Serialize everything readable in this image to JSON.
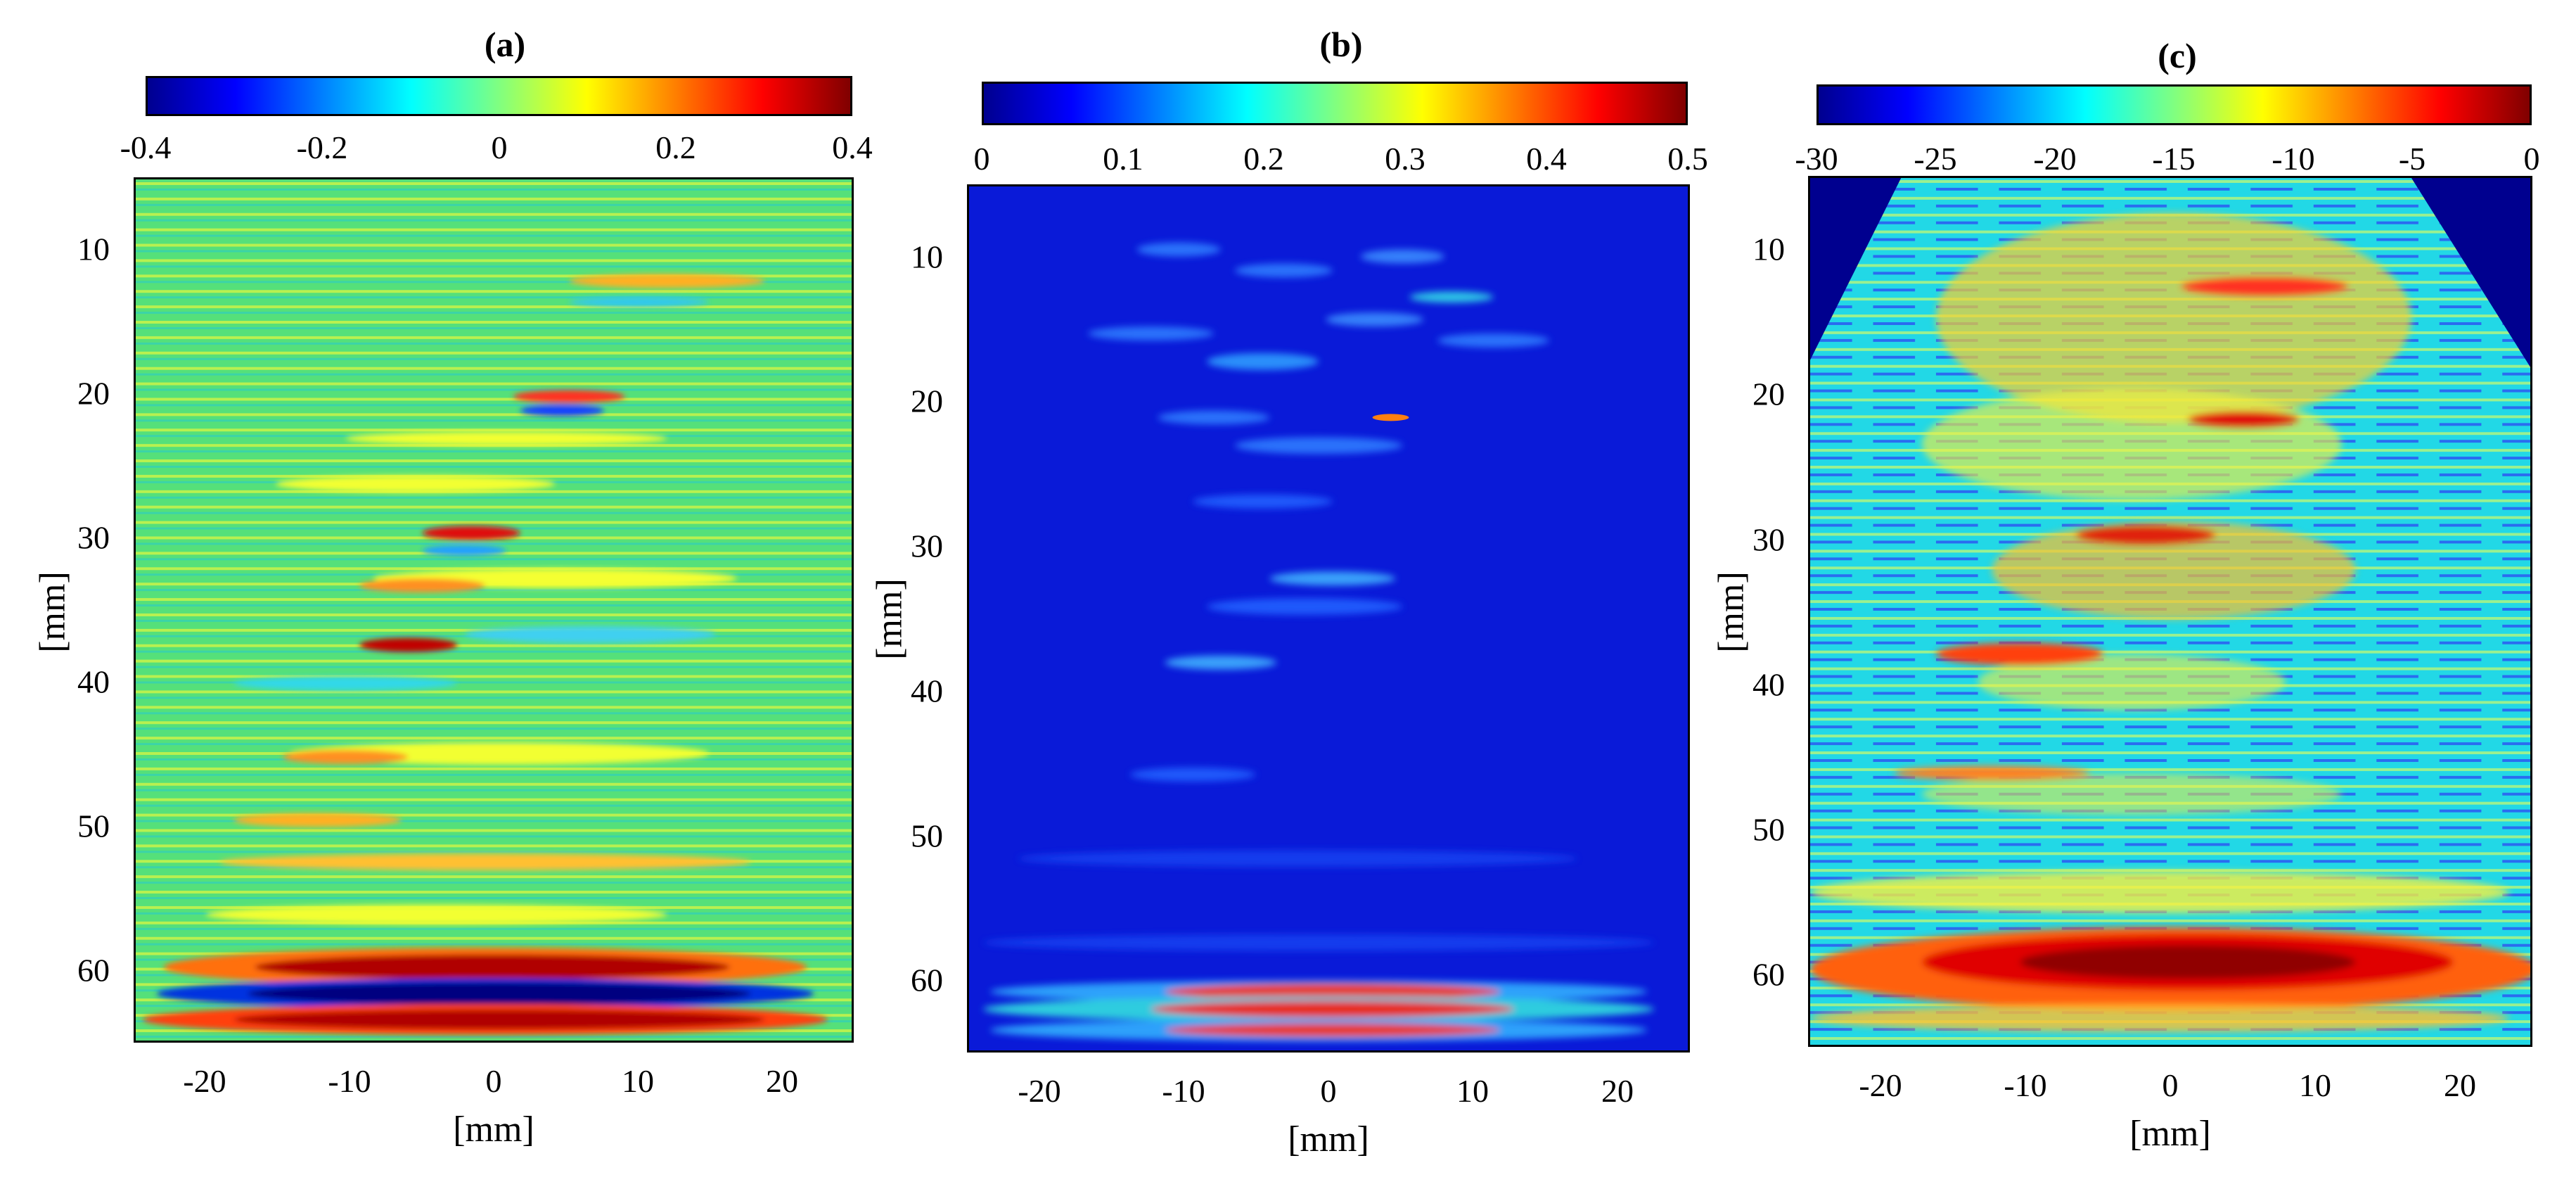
{
  "chart_data": [
    {
      "type": "heatmap",
      "title": "(a)",
      "xlabel": "[mm]",
      "ylabel": "[mm]",
      "xlim": [
        -25,
        25
      ],
      "ylim": [
        5,
        65
      ],
      "xticks": [
        "-20",
        "-10",
        "0",
        "10",
        "20"
      ],
      "yticks": [
        "10",
        "20",
        "30",
        "40",
        "50",
        "60"
      ],
      "colorbar": {
        "range": [
          -0.4,
          0.4
        ],
        "ticks": [
          "-0.4",
          "-0.2",
          "0",
          "0.2",
          "0.4"
        ],
        "colormap": "jet"
      },
      "background_value": 0.0
    },
    {
      "type": "heatmap",
      "title": "(b)",
      "xlabel": "[mm]",
      "ylabel": "[mm]",
      "xlim": [
        -25,
        25
      ],
      "ylim": [
        5,
        65
      ],
      "xticks": [
        "-20",
        "-10",
        "0",
        "10",
        "20"
      ],
      "yticks": [
        "10",
        "20",
        "30",
        "40",
        "50",
        "60"
      ],
      "colorbar": {
        "range": [
          0,
          0.5
        ],
        "ticks": [
          "0",
          "0.1",
          "0.2",
          "0.3",
          "0.4",
          "0.5"
        ],
        "colormap": "jet"
      },
      "background_value": 0.02
    },
    {
      "type": "heatmap",
      "title": "(c)",
      "xlabel": "[mm]",
      "ylabel": "[mm]",
      "xlim": [
        -25,
        25
      ],
      "ylim": [
        5,
        65
      ],
      "xticks": [
        "-20",
        "-10",
        "0",
        "10",
        "20"
      ],
      "yticks": [
        "10",
        "20",
        "30",
        "40",
        "50",
        "60"
      ],
      "colorbar": {
        "range": [
          -30,
          0
        ],
        "ticks": [
          "-30",
          "-25",
          "-20",
          "-15",
          "-10",
          "-5",
          "0"
        ],
        "colormap": "jet"
      },
      "background_value": -17
    }
  ],
  "colors": {
    "jet": [
      "#00008f",
      "#0000ff",
      "#0080ff",
      "#00ffff",
      "#80ff80",
      "#ffff00",
      "#ff8000",
      "#ff0000",
      "#800000"
    ]
  }
}
